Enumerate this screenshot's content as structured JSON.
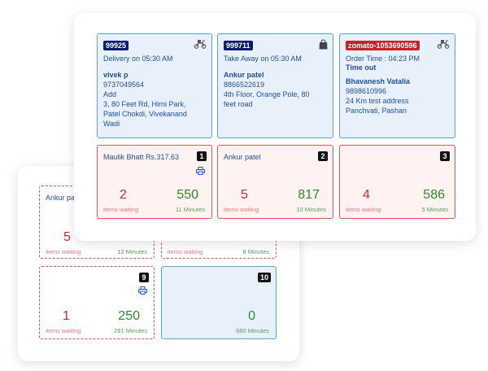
{
  "orders": [
    {
      "id": "99925",
      "id_color": "#0b1a6b",
      "line1": "Delivery on 05:30 AM",
      "customer": "vivek p",
      "address_lines": [
        "9737049564",
        "Add",
        "3, 80 Feet Rd, Hirni Park,",
        "Patel Chokdi, Vivekanand",
        "Wadi"
      ],
      "icon": "scooter-icon"
    },
    {
      "id": "999711",
      "id_color": "#0b1a6b",
      "line1": "Take Away on 05:30 AM",
      "customer": "Ankur patel",
      "address_lines": [
        "8866522619",
        "4th Floor, Orange Pole, 80",
        "feet road"
      ],
      "icon": "shopping-bag-icon"
    },
    {
      "id": "zomato-1053690596",
      "id_color": "#c7222c",
      "line1": "Order Time : 04:23 PM",
      "line2": "Time out",
      "customer": "Bhavanesh Vatalia",
      "address_lines": [
        "9898610996",
        "24 Km test address",
        "Panchvati, Pashan"
      ],
      "icon": "scooter-icon"
    }
  ],
  "tables": {
    "t1": {
      "number": "1",
      "name": "Maulik Bhatt Rs.317.63",
      "items": "2",
      "items_label": "items waiting",
      "minutes": "550",
      "minutes_label": "11 Minutes"
    },
    "t2": {
      "number": "2",
      "name": "Ankur patel",
      "items": "5",
      "items_label": "items waiting",
      "minutes": "817",
      "minutes_label": "10 Minutes"
    },
    "t3": {
      "number": "3",
      "name": "",
      "items": "4",
      "items_label": "items waiting",
      "minutes": "586",
      "minutes_label": "5 Minutes"
    },
    "b1": {
      "name": "Ankur pa",
      "items": "5",
      "items_label": "items waiting",
      "minutes_label": "12 Minutes"
    },
    "b2": {
      "items_label": "items waiting",
      "minutes_label": "8 Minutes"
    },
    "t9": {
      "number": "9",
      "items": "1",
      "items_label": "items waiting",
      "minutes": "250",
      "minutes_label": "291 Minutes"
    },
    "t10": {
      "number": "10",
      "minutes": "0",
      "minutes_label": "680 Minutes"
    }
  },
  "colors": {
    "accent_blue": "#1f4e9a",
    "red": "#d22a2a",
    "green": "#2a8a2a"
  }
}
